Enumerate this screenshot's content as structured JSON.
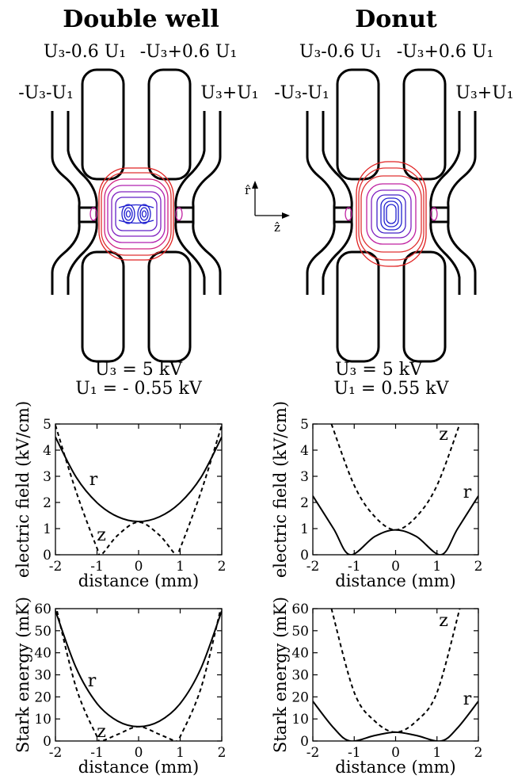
{
  "figure": {
    "left_panel": {
      "title": "Double well",
      "top_left_label": "U₃-0.6 U₁",
      "top_right_label": "-U₃+0.6 U₁",
      "side_left_label": "-U₃-U₁",
      "side_right_label": "U₃+U₁",
      "param1": "U₃ = 5 kV",
      "param2": "U₁ = - 0.55 kV"
    },
    "right_panel": {
      "title": "Donut",
      "top_left_label": "U₃-0.6 U₁",
      "top_right_label": "-U₃+0.6 U₁",
      "side_left_label": "-U₃-U₁",
      "side_right_label": "U₃+U₁",
      "param1": "U₃ = 5 kV",
      "param2": "U₁ = 0.55 kV"
    },
    "axes_indicator": {
      "r_label": "r̂",
      "z_label": "ẑ"
    },
    "colors": {
      "outer_contour": "#e02020",
      "mid_contour": "#c020a0",
      "inner_contour": "#2020d0",
      "electrode": "#000000"
    }
  },
  "chart_data": [
    {
      "type": "line",
      "name": "double-well-field",
      "xlabel": "distance (mm)",
      "ylabel": "electric field (kV/cm)",
      "xlim": [
        -2,
        2
      ],
      "ylim": [
        0,
        5
      ],
      "xticks": [
        "-2",
        "-1",
        "0",
        "1",
        "2"
      ],
      "yticks": [
        "0",
        "1",
        "2",
        "3",
        "4",
        "5"
      ],
      "series": [
        {
          "name": "r",
          "style": "solid",
          "x": [
            -2,
            -1.5,
            -1,
            -0.5,
            0,
            0.5,
            1,
            1.5,
            2
          ],
          "y": [
            4.5,
            2.96,
            1.99,
            1.45,
            1.27,
            1.45,
            1.99,
            2.96,
            4.5
          ]
        },
        {
          "name": "z",
          "style": "dashed",
          "x": [
            -2,
            -1.5,
            -1,
            -0.9,
            -0.5,
            0,
            0.5,
            0.9,
            1,
            1.5,
            2
          ],
          "y": [
            4.95,
            2.4,
            0.25,
            0,
            0.75,
            1.25,
            0.75,
            0,
            0.25,
            2.4,
            4.95
          ]
        }
      ]
    },
    {
      "type": "line",
      "name": "donut-field",
      "xlabel": "distance (mm)",
      "ylabel": "electric field (kV/cm)",
      "xlim": [
        -2,
        2
      ],
      "ylim": [
        0,
        5
      ],
      "xticks": [
        "-2",
        "-1",
        "0",
        "1",
        "2"
      ],
      "yticks": [
        "0",
        "1",
        "2",
        "3",
        "4",
        "5"
      ],
      "series": [
        {
          "name": "r",
          "style": "solid",
          "x": [
            -2,
            -1.5,
            -1.1,
            -0.5,
            0,
            0.5,
            1.1,
            1.5,
            2
          ],
          "y": [
            2.25,
            1.0,
            0,
            0.7,
            0.95,
            0.7,
            0,
            1.0,
            2.25
          ]
        },
        {
          "name": "z",
          "style": "dashed",
          "x": [
            -1.55,
            -1,
            -0.5,
            0,
            0.5,
            1,
            1.55
          ],
          "y": [
            5.0,
            2.65,
            1.45,
            0.95,
            1.45,
            2.65,
            5.0
          ]
        }
      ]
    },
    {
      "type": "line",
      "name": "double-well-stark",
      "xlabel": "distance (mm)",
      "ylabel": "Stark energy (mK)",
      "xlim": [
        -2,
        2
      ],
      "ylim": [
        0,
        60
      ],
      "xticks": [
        "-2",
        "-1",
        "0",
        "1",
        "2"
      ],
      "yticks": [
        "0",
        "10",
        "20",
        "30",
        "40",
        "50",
        "60"
      ],
      "series": [
        {
          "name": "r",
          "style": "solid",
          "x": [
            -2,
            -1.5,
            -1,
            -0.5,
            0,
            0.5,
            1,
            1.5,
            2
          ],
          "y": [
            59,
            33,
            17,
            9,
            6.5,
            9,
            17,
            33,
            59
          ]
        },
        {
          "name": "z",
          "style": "dashed",
          "x": [
            -2,
            -1.5,
            -1,
            -0.9,
            -0.5,
            0,
            0.5,
            0.9,
            1,
            1.5,
            2
          ],
          "y": [
            62,
            24,
            2,
            0,
            3,
            6.5,
            3,
            0,
            2,
            24,
            62
          ]
        }
      ]
    },
    {
      "type": "line",
      "name": "donut-stark",
      "xlabel": "distance (mm)",
      "ylabel": "Stark energy (mK)",
      "xlim": [
        -2,
        2
      ],
      "ylim": [
        0,
        60
      ],
      "xticks": [
        "-2",
        "-1",
        "0",
        "1",
        "2"
      ],
      "yticks": [
        "0",
        "10",
        "20",
        "30",
        "40",
        "50",
        "60"
      ],
      "series": [
        {
          "name": "r",
          "style": "solid",
          "x": [
            -2,
            -1.5,
            -1.1,
            -0.5,
            0,
            0.5,
            1.1,
            1.5,
            2
          ],
          "y": [
            18,
            6,
            0,
            2.5,
            4,
            2.5,
            0,
            6,
            18
          ]
        },
        {
          "name": "z",
          "style": "dashed",
          "x": [
            -1.55,
            -1,
            -0.5,
            0,
            0.5,
            1,
            1.55
          ],
          "y": [
            60,
            22,
            9,
            4,
            9,
            22,
            60
          ]
        }
      ]
    }
  ]
}
